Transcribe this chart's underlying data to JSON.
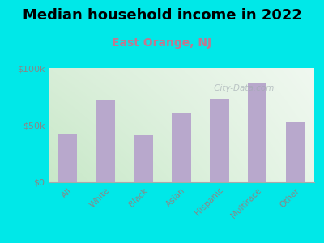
{
  "title": "Median household income in 2022",
  "subtitle": "East Orange, NJ",
  "categories": [
    "All",
    "White",
    "Black",
    "Asian",
    "Hispanic",
    "Multirace",
    "Other"
  ],
  "values": [
    42000,
    72000,
    41000,
    61000,
    73000,
    87000,
    53000
  ],
  "bar_color": "#b8a8cc",
  "title_fontsize": 13,
  "subtitle_fontsize": 10,
  "subtitle_color": "#c07890",
  "background_color": "#00e8e8",
  "tick_color": "#888888",
  "axis_color": "#aaaaaa",
  "watermark": " City-Data.com",
  "ylim": [
    0,
    100000
  ],
  "yticks": [
    0,
    50000,
    100000
  ],
  "ytick_labels": [
    "$0",
    "$50k",
    "$100k"
  ],
  "plot_bg_topleft": "#d8eed8",
  "plot_bg_topright": "#f0f8f0",
  "plot_bg_botleft": "#c8e8c8",
  "plot_bg_botright": "#e8f5e8"
}
